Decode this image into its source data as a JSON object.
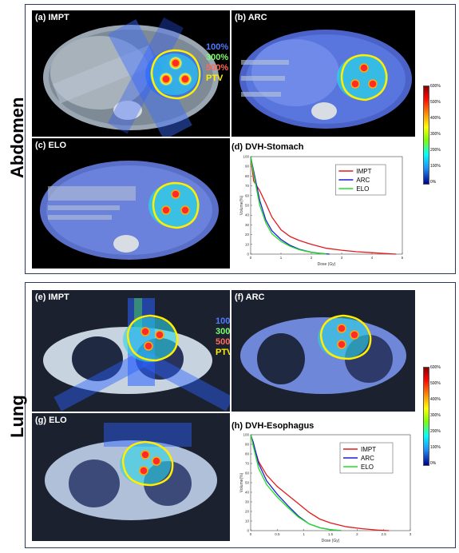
{
  "sections": [
    {
      "label": "Abdomen"
    },
    {
      "label": "Lung"
    }
  ],
  "panels": {
    "a": "(a) IMPT",
    "b": "(b) ARC",
    "c": "(c) ELO",
    "e": "(e) IMPT",
    "f": "(f) ARC",
    "g": "(g) ELO"
  },
  "isodose_legend": {
    "items": [
      {
        "text": "100%",
        "color": "#4f7bff"
      },
      {
        "text": "300%",
        "color": "#7cff6a"
      },
      {
        "text": "500%",
        "color": "#ff6a5a"
      },
      {
        "text": "PTV",
        "color": "#ffee00"
      }
    ]
  },
  "colorbar": {
    "ticks": [
      "600%",
      "500%",
      "400%",
      "300%",
      "200%",
      "100%",
      "0%"
    ]
  },
  "chart_data": [
    {
      "type": "line",
      "title": "(d) DVH-Stomach",
      "xlabel": "Dose (Gy)",
      "ylabel": "Volume(%)",
      "xlim": [
        0,
        5
      ],
      "ylim": [
        0,
        100
      ],
      "xticks": [
        "0",
        "1",
        "2",
        "3",
        "4",
        "5"
      ],
      "yticks": [
        "0",
        "10",
        "20",
        "30",
        "40",
        "50",
        "60",
        "70",
        "80",
        "90",
        "100"
      ],
      "legend_position": "top-right",
      "series": [
        {
          "name": "IMPT",
          "color": "#e41a1c",
          "x": [
            0,
            0.1,
            0.3,
            0.5,
            0.7,
            1.0,
            1.3,
            1.6,
            2.0,
            2.5,
            3.0,
            3.5,
            4.0,
            4.5,
            4.8
          ],
          "y": [
            100,
            75,
            65,
            52,
            38,
            25,
            18,
            14,
            10,
            6,
            4,
            2.5,
            1.5,
            0.5,
            0
          ]
        },
        {
          "name": "ARC",
          "color": "#1f1fd6",
          "x": [
            0,
            0.1,
            0.3,
            0.5,
            0.7,
            1.0,
            1.3,
            1.6,
            2.0,
            2.3,
            2.6
          ],
          "y": [
            100,
            85,
            55,
            35,
            24,
            15,
            9,
            5,
            2,
            0.8,
            0
          ]
        },
        {
          "name": "ELO",
          "color": "#22dd22",
          "x": [
            0,
            0.1,
            0.3,
            0.5,
            0.7,
            1.0,
            1.3,
            1.6,
            2.0,
            2.3,
            2.5
          ],
          "y": [
            100,
            82,
            50,
            32,
            21,
            13,
            8,
            4.5,
            1.8,
            0.6,
            0
          ]
        }
      ]
    },
    {
      "type": "line",
      "title": "(h) DVH-Esophagus",
      "xlabel": "Dose (Gy)",
      "ylabel": "Volume(%)",
      "xlim": [
        0,
        3
      ],
      "ylim": [
        0,
        100
      ],
      "xticks": [
        "0",
        "0.5",
        "1",
        "1.5",
        "2",
        "2.5",
        "3"
      ],
      "yticks": [
        "0",
        "10",
        "20",
        "30",
        "40",
        "50",
        "60",
        "70",
        "80",
        "90",
        "100"
      ],
      "legend_position": "top-right",
      "series": [
        {
          "name": "IMPT",
          "color": "#e41a1c",
          "x": [
            0,
            0.05,
            0.15,
            0.3,
            0.5,
            0.7,
            0.9,
            1.1,
            1.3,
            1.5,
            1.8,
            2.1,
            2.4,
            2.6
          ],
          "y": [
            100,
            90,
            72,
            58,
            46,
            37,
            28,
            19,
            12,
            8,
            4,
            2,
            0.5,
            0
          ]
        },
        {
          "name": "ARC",
          "color": "#1f1fd6",
          "x": [
            0,
            0.05,
            0.15,
            0.3,
            0.5,
            0.7,
            0.9,
            1.1,
            1.3,
            1.5,
            1.7
          ],
          "y": [
            100,
            92,
            70,
            52,
            38,
            26,
            15,
            7,
            3,
            1,
            0
          ]
        },
        {
          "name": "ELO",
          "color": "#22dd22",
          "x": [
            0,
            0.05,
            0.15,
            0.3,
            0.5,
            0.7,
            0.9,
            1.1,
            1.3,
            1.5,
            1.7
          ],
          "y": [
            100,
            88,
            65,
            48,
            35,
            24,
            14,
            7,
            3,
            1,
            0
          ]
        }
      ]
    }
  ]
}
